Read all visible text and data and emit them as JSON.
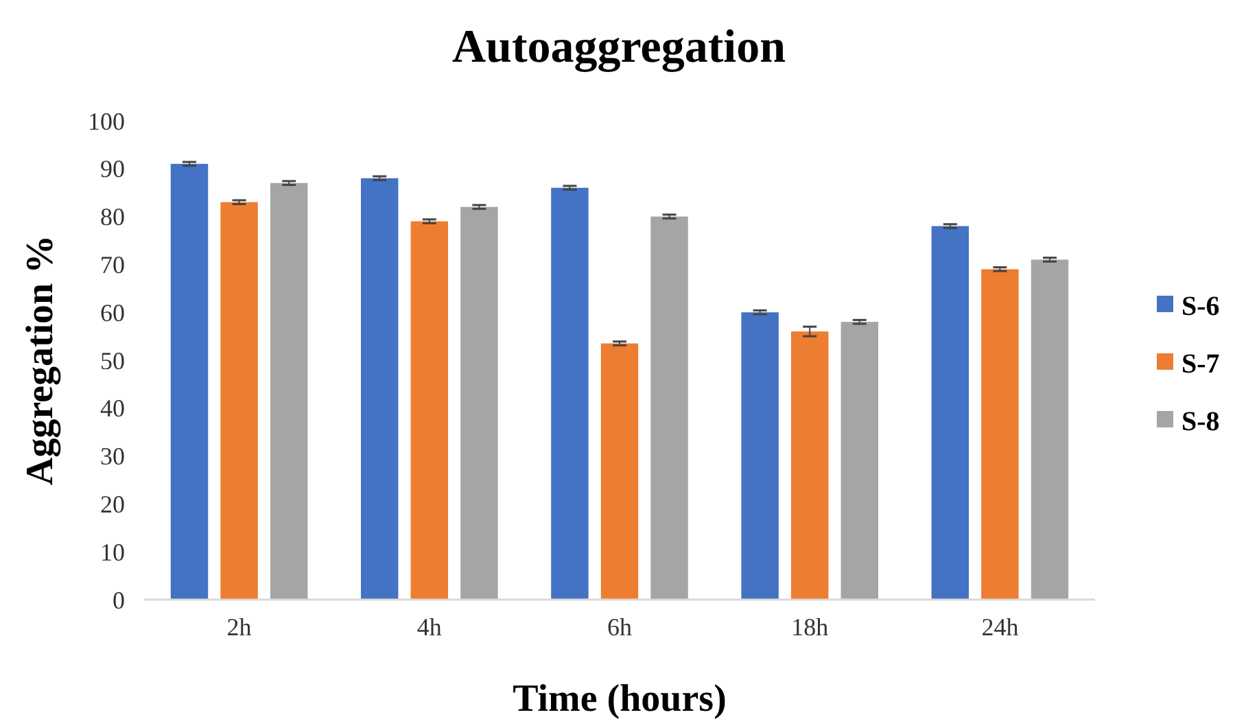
{
  "chart_data": {
    "type": "bar",
    "title": "Autoaggregation",
    "xlabel": "Time (hours)",
    "ylabel": "Aggregation %",
    "categories": [
      "2h",
      "4h",
      "6h",
      "18h",
      "24h"
    ],
    "series": [
      {
        "name": "S-6",
        "color": "#4472c4",
        "values": [
          91,
          88,
          86,
          60,
          78
        ],
        "errors": [
          0.4,
          0.4,
          0.4,
          0.4,
          0.4
        ]
      },
      {
        "name": "S-7",
        "color": "#ed7d31",
        "values": [
          83,
          79,
          53.5,
          56,
          69
        ],
        "errors": [
          0.4,
          0.4,
          0.4,
          1,
          0.4
        ]
      },
      {
        "name": "S-8",
        "color": "#a5a5a5",
        "values": [
          87,
          82,
          80,
          58,
          71
        ],
        "errors": [
          0.4,
          0.4,
          0.4,
          0.4,
          0.4
        ]
      }
    ],
    "ylim": [
      0,
      100
    ],
    "yticks": [
      0,
      10,
      20,
      30,
      40,
      50,
      60,
      70,
      80,
      90,
      100
    ],
    "grid": false,
    "legend": "right"
  }
}
